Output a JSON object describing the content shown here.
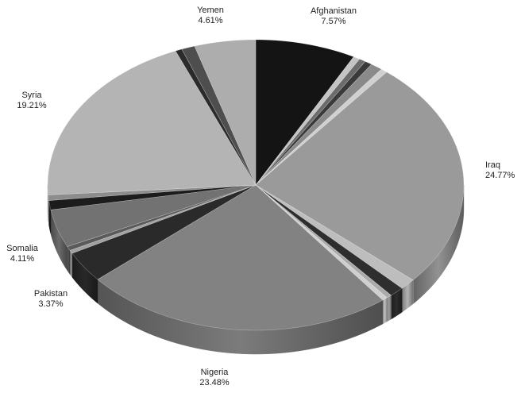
{
  "chart_data": {
    "type": "pie",
    "style": "3d-tilted",
    "legend": "none",
    "slices": [
      {
        "label": "Afghanistan",
        "pct_text": "7.57%",
        "value": 7.57,
        "color": "#141414",
        "labeled": true
      },
      {
        "label": "",
        "pct_text": "",
        "value": 0.5,
        "color": "#c4c4c4",
        "labeled": false
      },
      {
        "label": "",
        "pct_text": "",
        "value": 0.5,
        "color": "#6b6b6b",
        "labeled": false
      },
      {
        "label": "",
        "pct_text": "",
        "value": 0.55,
        "color": "#3a3a3a",
        "labeled": false
      },
      {
        "label": "",
        "pct_text": "",
        "value": 0.9,
        "color": "#8a8a8a",
        "labeled": false
      },
      {
        "label": "",
        "pct_text": "",
        "value": 0.5,
        "color": "#d0d0d0",
        "labeled": false
      },
      {
        "label": "Iraq",
        "pct_text": "24.77%",
        "value": 24.77,
        "color": "#9a9a9a",
        "labeled": true
      },
      {
        "label": "",
        "pct_text": "",
        "value": 1.2,
        "color": "#bdbdbd",
        "labeled": false
      },
      {
        "label": "",
        "pct_text": "",
        "value": 1.1,
        "color": "#2e2e2e",
        "labeled": false
      },
      {
        "label": "",
        "pct_text": "",
        "value": 0.4,
        "color": "#aaaaaa",
        "labeled": false
      },
      {
        "label": "",
        "pct_text": "",
        "value": 0.4,
        "color": "#cfcfcf",
        "labeled": false
      },
      {
        "label": "Nigeria",
        "pct_text": "23.48%",
        "value": 23.48,
        "color": "#828282",
        "labeled": true
      },
      {
        "label": "Pakistan",
        "pct_text": "3.37%",
        "value": 3.37,
        "color": "#2a2a2a",
        "labeled": true
      },
      {
        "label": "",
        "pct_text": "",
        "value": 0.35,
        "color": "#a0a0a0",
        "labeled": false
      },
      {
        "label": "",
        "pct_text": "",
        "value": 0.45,
        "color": "#5a5a5a",
        "labeled": false
      },
      {
        "label": "Somalia",
        "pct_text": "4.11%",
        "value": 4.11,
        "color": "#727272",
        "labeled": true
      },
      {
        "label": "",
        "pct_text": "",
        "value": 1.0,
        "color": "#1c1c1c",
        "labeled": false
      },
      {
        "label": "",
        "pct_text": "",
        "value": 0.6,
        "color": "#8c8c8c",
        "labeled": false
      },
      {
        "label": "Syria",
        "pct_text": "19.21%",
        "value": 19.21,
        "color": "#b4b4b4",
        "labeled": true
      },
      {
        "label": "",
        "pct_text": "",
        "value": 0.5,
        "color": "#2b2b2b",
        "labeled": false
      },
      {
        "label": "",
        "pct_text": "",
        "value": 1.0,
        "color": "#4e4e4e",
        "labeled": false
      },
      {
        "label": "Yemen",
        "pct_text": "4.61%",
        "value": 4.61,
        "color": "#adadad",
        "labeled": true
      }
    ]
  }
}
